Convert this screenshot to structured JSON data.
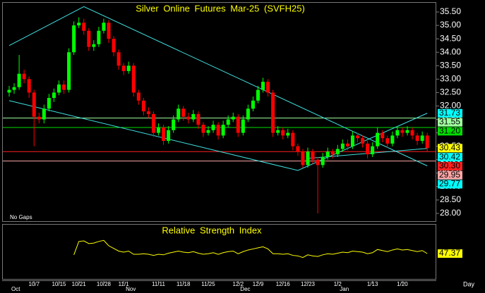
{
  "chart_data": {
    "type": "candlestick",
    "title": "Silver Online Futures Mar-25 (SVFH25)",
    "note": "No Gaps",
    "period": "Day",
    "categories": [
      null,
      null,
      null,
      null,
      null,
      "10/7",
      null,
      null,
      null,
      null,
      "10/15",
      null,
      null,
      null,
      "10/21",
      null,
      null,
      null,
      null,
      "10/28",
      null,
      null,
      null,
      "11/1",
      null,
      null,
      null,
      null,
      null,
      null,
      "11/11",
      null,
      null,
      null,
      null,
      "11/18",
      null,
      null,
      null,
      null,
      "11/25",
      null,
      null,
      null,
      null,
      null,
      "12/2",
      null,
      null,
      null,
      "12/9",
      null,
      null,
      null,
      null,
      "12/16",
      null,
      null,
      null,
      null,
      "12/23",
      null,
      null,
      null,
      null,
      null,
      "1/2",
      null,
      null,
      null,
      null,
      null,
      null,
      "1/13",
      null,
      null,
      null,
      null,
      null,
      "1/20",
      null,
      null,
      null,
      null,
      null
    ],
    "months": [
      "Oct",
      null,
      null,
      null,
      null,
      null,
      null,
      null,
      null,
      null,
      null,
      null,
      null,
      null,
      null,
      null,
      null,
      null,
      null,
      null,
      null,
      null,
      null,
      "Nov",
      null,
      null,
      null,
      null,
      null,
      null,
      null,
      null,
      null,
      null,
      null,
      null,
      null,
      null,
      null,
      null,
      null,
      null,
      null,
      null,
      null,
      null,
      "Dec",
      null,
      null,
      null,
      null,
      null,
      null,
      null,
      null,
      null,
      null,
      null,
      null,
      null,
      null,
      null,
      null,
      null,
      null,
      null,
      "Jan",
      null,
      null,
      null,
      null,
      null,
      null,
      null,
      null,
      null,
      null,
      null,
      null,
      null,
      null,
      null,
      null,
      null,
      null
    ],
    "open": [
      32.5,
      32.6,
      32.7,
      33.2,
      33.0,
      32.5,
      31.6,
      31.5,
      31.9,
      32.3,
      32.5,
      32.8,
      32.6,
      34.0,
      35.0,
      35.1,
      34.8,
      34.2,
      34.3,
      34.8,
      35.1,
      34.5,
      34.0,
      33.5,
      33.3,
      33.5,
      32.5,
      32.2,
      31.8,
      31.7,
      31.0,
      31.2,
      30.7,
      31.1,
      31.5,
      31.9,
      31.6,
      31.5,
      31.7,
      31.3,
      31.0,
      31.1,
      31.3,
      30.9,
      31.3,
      31.5,
      31.6,
      31.0,
      31.5,
      31.9,
      32.2,
      32.6,
      32.9,
      32.5,
      31.0,
      31.1,
      30.9,
      31.0,
      30.5,
      30.3,
      29.8,
      30.3,
      30.0,
      29.8,
      30.1,
      30.3,
      30.2,
      30.4,
      30.6,
      30.5,
      30.9,
      30.8,
      30.6,
      30.2,
      30.5,
      31.0,
      30.8,
      30.6,
      30.9,
      31.1,
      31.0,
      31.1,
      30.9,
      30.7,
      30.9
    ],
    "high": [
      32.75,
      32.85,
      33.9,
      33.35,
      33.1,
      32.6,
      31.75,
      32.05,
      32.45,
      32.65,
      32.95,
      32.95,
      34.15,
      35.15,
      35.3,
      35.25,
      34.9,
      34.45,
      34.95,
      35.25,
      35.2,
      34.6,
      34.1,
      33.6,
      33.65,
      33.6,
      32.6,
      32.3,
      31.95,
      31.8,
      31.35,
      31.3,
      31.25,
      31.65,
      32.05,
      32.0,
      31.75,
      31.85,
      31.8,
      31.4,
      31.25,
      31.45,
      31.4,
      31.45,
      31.65,
      31.75,
      31.7,
      31.65,
      32.05,
      32.35,
      32.75,
      33.05,
      33.0,
      32.6,
      31.25,
      31.2,
      31.15,
      31.1,
      30.6,
      30.4,
      30.45,
      30.4,
      30.1,
      30.25,
      30.45,
      30.4,
      30.55,
      30.75,
      30.75,
      31.05,
      31.0,
      30.9,
      30.7,
      30.65,
      31.2,
      31.1,
      30.9,
      31.05,
      31.25,
      31.2,
      31.25,
      31.2,
      31.0,
      31.05,
      31.0
    ],
    "low": [
      32.35,
      32.45,
      32.6,
      32.85,
      32.3,
      30.5,
      31.35,
      31.35,
      31.8,
      32.15,
      32.4,
      32.45,
      32.5,
      33.9,
      34.9,
      34.65,
      34.05,
      34.05,
      34.2,
      34.7,
      34.35,
      33.85,
      33.35,
      33.15,
      33.2,
      32.35,
      32.05,
      31.65,
      31.55,
      30.85,
      30.9,
      30.55,
      30.6,
      31.0,
      31.4,
      31.45,
      31.35,
      31.4,
      31.15,
      30.85,
      30.9,
      31.0,
      30.75,
      30.8,
      31.2,
      31.4,
      30.85,
      30.9,
      31.4,
      31.8,
      32.1,
      32.5,
      32.35,
      30.85,
      30.9,
      30.75,
      30.8,
      30.35,
      30.15,
      29.7,
      29.7,
      29.85,
      28.0,
      29.7,
      30.0,
      30.05,
      30.1,
      30.3,
      30.35,
      30.4,
      30.65,
      30.45,
      30.05,
      30.1,
      30.4,
      30.65,
      30.45,
      30.5,
      30.8,
      30.85,
      30.9,
      30.75,
      30.55,
      30.6,
      30.3
    ],
    "close": [
      32.6,
      32.7,
      33.2,
      33.0,
      32.5,
      31.6,
      31.5,
      31.9,
      32.3,
      32.5,
      32.8,
      32.6,
      34.0,
      35.0,
      35.1,
      34.8,
      34.2,
      34.3,
      34.8,
      35.1,
      34.5,
      34.0,
      33.5,
      33.3,
      33.5,
      32.5,
      32.2,
      31.8,
      31.7,
      31.0,
      31.2,
      30.7,
      31.1,
      31.5,
      31.9,
      31.6,
      31.5,
      31.7,
      31.3,
      31.0,
      31.1,
      31.3,
      30.9,
      31.3,
      31.5,
      31.6,
      31.0,
      31.5,
      31.9,
      32.2,
      32.6,
      32.9,
      32.5,
      31.0,
      31.1,
      30.9,
      31.0,
      30.5,
      30.3,
      29.8,
      30.3,
      30.0,
      29.8,
      30.1,
      30.3,
      30.2,
      30.4,
      30.6,
      30.5,
      30.9,
      30.8,
      30.6,
      30.2,
      30.5,
      31.0,
      30.8,
      30.6,
      30.9,
      31.1,
      31.0,
      31.1,
      30.9,
      30.7,
      30.9,
      30.43
    ],
    "up_color": "#00ff00",
    "down_color": "#ff0000",
    "ylim": [
      28,
      35.5
    ],
    "yticks": [
      {
        "value": 28,
        "label": "28.00"
      },
      {
        "value": 28.5,
        "label": "28.50"
      },
      {
        "value": 29,
        "label": "29.00"
      },
      {
        "value": 29.5,
        "label": "29.50"
      },
      {
        "value": 30,
        "label": "30.00"
      },
      {
        "value": 30.5,
        "label": "30.50"
      },
      {
        "value": 31,
        "label": "31.00"
      },
      {
        "value": 31.5,
        "label": "31.50"
      },
      {
        "value": 32,
        "label": "32.00"
      },
      {
        "value": 32.5,
        "label": "32.50"
      },
      {
        "value": 33,
        "label": "33.00"
      },
      {
        "value": 33.5,
        "label": "33.50"
      },
      {
        "value": 34,
        "label": "34.00"
      },
      {
        "value": 34.5,
        "label": "34.50"
      },
      {
        "value": 35,
        "label": "35.00"
      },
      {
        "value": 35.5,
        "label": "35.50"
      }
    ],
    "price_markers": [
      {
        "value": 31.73,
        "color": "#00ffff",
        "line": false
      },
      {
        "value": 31.55,
        "label": "31.55",
        "color": "#a0ffa0",
        "line": true
      },
      {
        "value": 31.2,
        "label": "31.20",
        "color": "#00dd00",
        "line": true
      },
      {
        "value": 30.43,
        "label": "30.43",
        "color": "#ffff00",
        "line": false
      },
      {
        "value": 30.42,
        "label": "30.42",
        "color": "#00ffff",
        "line": false
      },
      {
        "value": 30.3,
        "label": "30.30",
        "color": "#ff2020",
        "line": true
      },
      {
        "value": 29.95,
        "label": "29.95",
        "color": "#ffa8a8",
        "line": true
      },
      {
        "value": 29.77,
        "label": "29.77",
        "color": "#00ffff",
        "line": false
      }
    ],
    "trendlines": [
      {
        "color": "#40e0e0",
        "x": [
          0,
          15,
          84
        ],
        "y": [
          34.25,
          35.7,
          29.77
        ]
      },
      {
        "color": "#40e0e0",
        "x": [
          0,
          58,
          84
        ],
        "y": [
          32.2,
          29.6,
          31.73
        ]
      },
      {
        "color": "#40e0e0",
        "x": [
          60,
          84
        ],
        "y": [
          30.05,
          30.42
        ]
      }
    ],
    "rsi": {
      "title": "Relative Strength Index",
      "color": "#ffff00",
      "ylim": [
        0,
        100
      ],
      "last": 47.37,
      "values": [
        null,
        null,
        null,
        null,
        null,
        null,
        null,
        null,
        null,
        null,
        null,
        null,
        null,
        45,
        70,
        71,
        66,
        67,
        70,
        72,
        62,
        57,
        52,
        50,
        52,
        46,
        46,
        47,
        46,
        44,
        46,
        45,
        48,
        50,
        52,
        50,
        49,
        51,
        48,
        46,
        47,
        49,
        46,
        49,
        51,
        52,
        47,
        51,
        54,
        56,
        58,
        60,
        56,
        47,
        47,
        46,
        47,
        44,
        43,
        40,
        45,
        43,
        42,
        45,
        47,
        46,
        48,
        50,
        49,
        52,
        51,
        50,
        47,
        49,
        55,
        53,
        51,
        54,
        56,
        54,
        55,
        53,
        51,
        53,
        47.37
      ]
    }
  }
}
